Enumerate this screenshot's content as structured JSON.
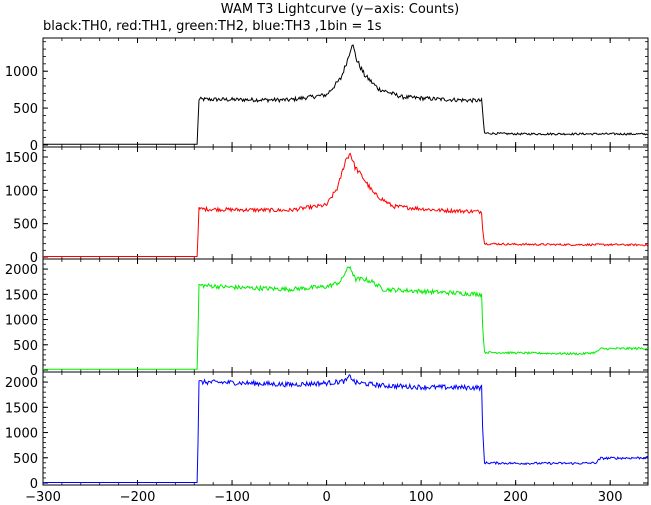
{
  "chart_data": {
    "type": "line",
    "title": "WAM T3 Lightcurve (y−axis: Counts)",
    "subtitle": "black:TH0, red:TH1, green:TH2, blue:TH3 ,1bin = 1s",
    "xlim": [
      -300,
      340
    ],
    "x_ticks": [
      -300,
      -200,
      -100,
      0,
      100,
      200,
      300
    ],
    "x_tick_labels": [
      "−300",
      "−200",
      "−100",
      "0",
      "100",
      "200",
      "300"
    ],
    "series": [
      {
        "name": "TH0",
        "color": "#000000",
        "ylim": [
          0,
          1450
        ],
        "y_ticks": [
          0,
          500,
          1000
        ],
        "y_tick_labels": [
          "0",
          "500",
          "1000"
        ],
        "points": [
          [
            -300,
            10
          ],
          [
            -137,
            10
          ],
          [
            -136,
            300
          ],
          [
            -135,
            620
          ],
          [
            -100,
            615
          ],
          [
            -40,
            610
          ],
          [
            0,
            680
          ],
          [
            15,
            900
          ],
          [
            22,
            1150
          ],
          [
            27,
            1380
          ],
          [
            32,
            1150
          ],
          [
            40,
            950
          ],
          [
            55,
            760
          ],
          [
            80,
            650
          ],
          [
            120,
            620
          ],
          [
            164,
            600
          ],
          [
            165,
            450
          ],
          [
            167,
            160
          ],
          [
            200,
            150
          ],
          [
            260,
            150
          ],
          [
            300,
            150
          ],
          [
            340,
            148
          ]
        ]
      },
      {
        "name": "TH1",
        "color": "#ff0000",
        "ylim": [
          0,
          1650
        ],
        "y_ticks": [
          0,
          500,
          1000,
          1500
        ],
        "y_tick_labels": [
          "0",
          "500",
          "1000",
          "1500"
        ],
        "points": [
          [
            -300,
            8
          ],
          [
            -137,
            8
          ],
          [
            -136,
            350
          ],
          [
            -135,
            720
          ],
          [
            -100,
            710
          ],
          [
            -40,
            700
          ],
          [
            0,
            780
          ],
          [
            12,
            1050
          ],
          [
            20,
            1450
          ],
          [
            25,
            1560
          ],
          [
            30,
            1350
          ],
          [
            38,
            1200
          ],
          [
            50,
            950
          ],
          [
            70,
            760
          ],
          [
            120,
            700
          ],
          [
            164,
            680
          ],
          [
            165,
            450
          ],
          [
            167,
            200
          ],
          [
            200,
            190
          ],
          [
            260,
            185
          ],
          [
            300,
            185
          ],
          [
            340,
            180
          ]
        ]
      },
      {
        "name": "TH2",
        "color": "#00ee00",
        "ylim": [
          0,
          2200
        ],
        "y_ticks": [
          0,
          500,
          1000,
          1500,
          2000
        ],
        "y_tick_labels": [
          "0",
          "500",
          "1000",
          "1500",
          "2000"
        ],
        "points": [
          [
            -300,
            15
          ],
          [
            -137,
            15
          ],
          [
            -136,
            700
          ],
          [
            -135,
            1680
          ],
          [
            -100,
            1640
          ],
          [
            -40,
            1600
          ],
          [
            0,
            1650
          ],
          [
            15,
            1750
          ],
          [
            20,
            1950
          ],
          [
            25,
            2050
          ],
          [
            30,
            1800
          ],
          [
            40,
            1800
          ],
          [
            48,
            1750
          ],
          [
            60,
            1600
          ],
          [
            100,
            1560
          ],
          [
            164,
            1500
          ],
          [
            165,
            900
          ],
          [
            167,
            350
          ],
          [
            200,
            340
          ],
          [
            270,
            320
          ],
          [
            285,
            350
          ],
          [
            290,
            420
          ],
          [
            340,
            430
          ]
        ]
      },
      {
        "name": "TH3",
        "color": "#0000ff",
        "ylim": [
          0,
          2200
        ],
        "y_ticks": [
          0,
          500,
          1000,
          1500,
          2000
        ],
        "y_tick_labels": [
          "0",
          "500",
          "1000",
          "1500",
          "2000"
        ],
        "points": [
          [
            -300,
            10
          ],
          [
            -137,
            10
          ],
          [
            -136,
            800
          ],
          [
            -135,
            2000
          ],
          [
            -100,
            1990
          ],
          [
            -40,
            1950
          ],
          [
            0,
            1980
          ],
          [
            20,
            2020
          ],
          [
            25,
            2120
          ],
          [
            30,
            1990
          ],
          [
            60,
            1930
          ],
          [
            100,
            1900
          ],
          [
            164,
            1890
          ],
          [
            165,
            1100
          ],
          [
            167,
            400
          ],
          [
            200,
            390
          ],
          [
            270,
            390
          ],
          [
            285,
            400
          ],
          [
            290,
            490
          ],
          [
            340,
            500
          ]
        ]
      }
    ]
  }
}
